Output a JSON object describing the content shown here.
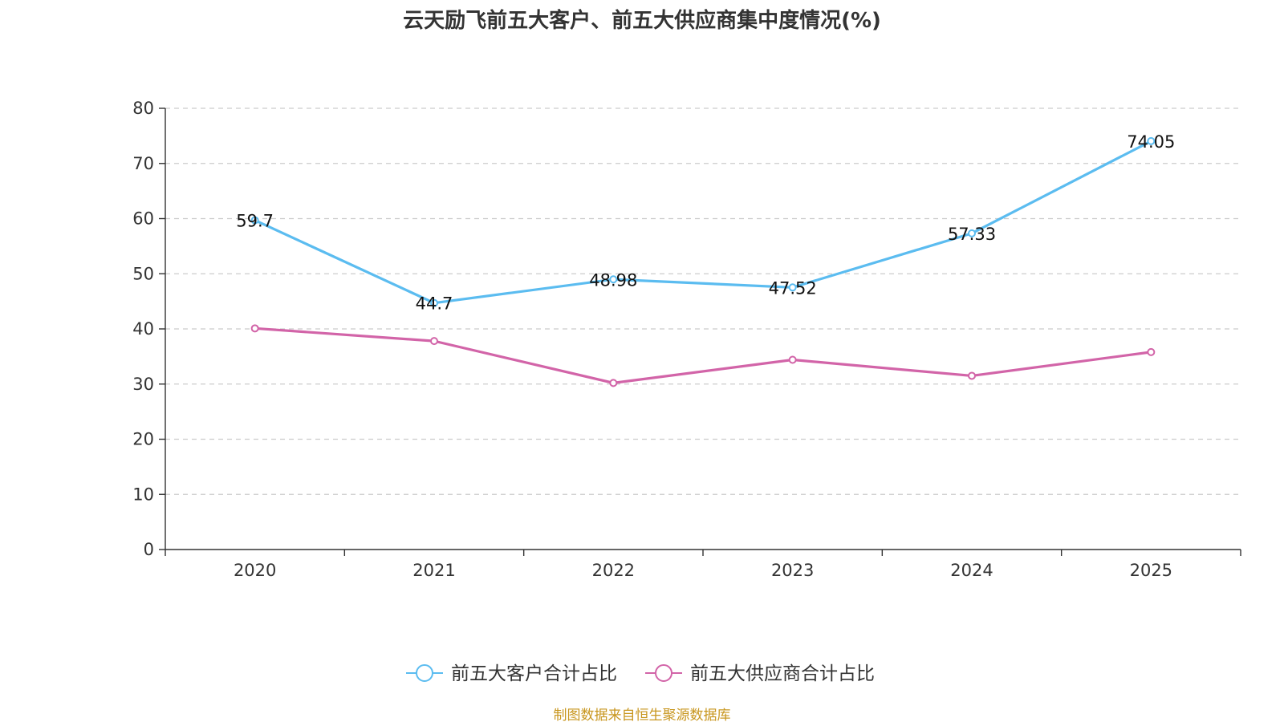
{
  "chart_data": {
    "type": "line",
    "title": "云天励飞前五大客户、前五大供应商集中度情况(%)",
    "categories": [
      "2020",
      "2021",
      "2022",
      "2023",
      "2024",
      "2025"
    ],
    "series": [
      {
        "name": "前五大客户合计占比",
        "color": "#5bbcf0",
        "values": [
          59.7,
          44.7,
          48.98,
          47.52,
          57.33,
          74.05
        ],
        "labels": [
          "59.7",
          "44.7",
          "48.98",
          "47.52",
          "57.33",
          "74.05"
        ]
      },
      {
        "name": "前五大供应商合计占比",
        "color": "#d264a8",
        "values": [
          40.1,
          37.8,
          30.2,
          34.4,
          31.5,
          35.8
        ],
        "labels": []
      }
    ],
    "xlabel": "",
    "ylabel": "",
    "ylim": [
      0,
      80
    ],
    "yticks": [
      0,
      10,
      20,
      30,
      40,
      50,
      60,
      70,
      80
    ],
    "grid": true,
    "legend": "bottom-center"
  },
  "source": "制图数据来自恒生聚源数据库"
}
